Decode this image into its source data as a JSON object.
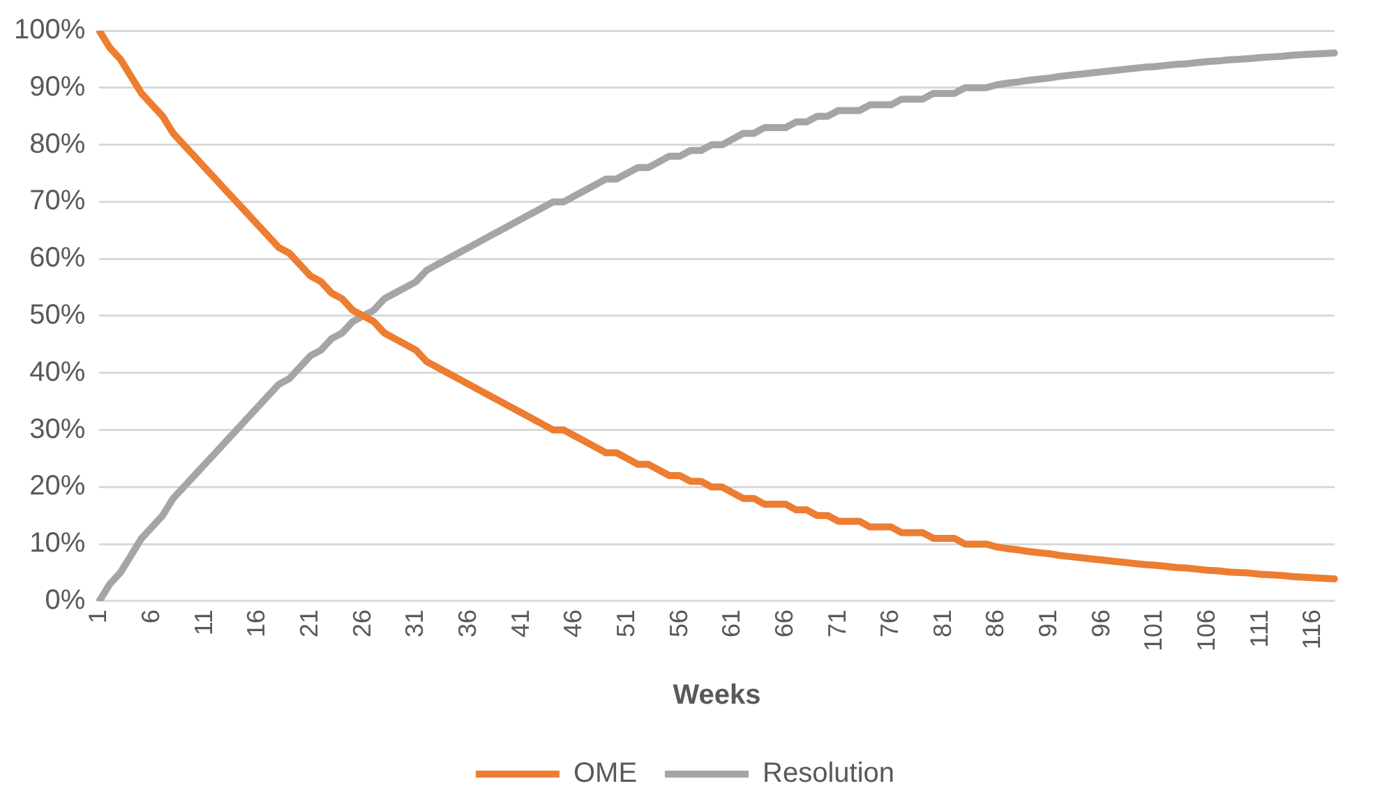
{
  "chart_data": {
    "type": "line",
    "xlabel": "Weeks",
    "categories": [
      "1",
      null,
      null,
      null,
      null,
      "6",
      null,
      null,
      null,
      null,
      "11",
      null,
      null,
      null,
      null,
      "16",
      null,
      null,
      null,
      null,
      "21",
      null,
      null,
      null,
      null,
      "26",
      null,
      null,
      null,
      null,
      "31",
      null,
      null,
      null,
      null,
      "36",
      null,
      null,
      null,
      null,
      "41",
      null,
      null,
      null,
      null,
      "46",
      null,
      null,
      null,
      null,
      "51",
      null,
      null,
      null,
      null,
      "56",
      null,
      null,
      null,
      null,
      "61",
      null,
      null,
      null,
      null,
      "66",
      null,
      null,
      null,
      null,
      "71",
      null,
      null,
      null,
      null,
      "76",
      null,
      null,
      null,
      null,
      "81",
      null,
      null,
      null,
      null,
      "86",
      null,
      null,
      null,
      null,
      "91",
      null,
      null,
      null,
      null,
      "96",
      null,
      null,
      null,
      null,
      "101",
      null,
      null,
      null,
      null,
      "106",
      null,
      null,
      null,
      null,
      "111",
      null,
      null,
      null,
      null,
      "116",
      null,
      null
    ],
    "series": [
      {
        "name": "OME",
        "color": "#ed7d31",
        "values": [
          100,
          97,
          95,
          92,
          89,
          87,
          85,
          82,
          80,
          78,
          76,
          74,
          72,
          70,
          68,
          66,
          64,
          62,
          61,
          59,
          57,
          56,
          54,
          53,
          51,
          50,
          49,
          47,
          46,
          45,
          44,
          42,
          41,
          40,
          39,
          38,
          37,
          36,
          35,
          34,
          33,
          32,
          31,
          30,
          30,
          29,
          28,
          27,
          26,
          26,
          25,
          24,
          24,
          23,
          22,
          22,
          21,
          21,
          20,
          20,
          19,
          18,
          18,
          17,
          17,
          17,
          16,
          16,
          15,
          15,
          14,
          14,
          14,
          13,
          13,
          13,
          12,
          12,
          12,
          11,
          11,
          11,
          10,
          10,
          10,
          9.5,
          9.2,
          9.0,
          8.7,
          8.5,
          8.3,
          8.0,
          7.8,
          7.6,
          7.4,
          7.2,
          7.0,
          6.8,
          6.6,
          6.4,
          6.3,
          6.1,
          5.9,
          5.8,
          5.6,
          5.4,
          5.3,
          5.1,
          5.0,
          4.9,
          4.7,
          4.6,
          4.5,
          4.3,
          4.2,
          4.1,
          4.0,
          3.9
        ]
      },
      {
        "name": "Resolution",
        "color": "#a5a5a5",
        "values": [
          0,
          3,
          5,
          8,
          11,
          13,
          15,
          18,
          20,
          22,
          24,
          26,
          28,
          30,
          32,
          34,
          36,
          38,
          39,
          41,
          43,
          44,
          46,
          47,
          49,
          50,
          51,
          53,
          54,
          55,
          56,
          58,
          59,
          60,
          61,
          62,
          63,
          64,
          65,
          66,
          67,
          68,
          69,
          70,
          70,
          71,
          72,
          73,
          74,
          74,
          75,
          76,
          76,
          77,
          78,
          78,
          79,
          79,
          80,
          80,
          81,
          82,
          82,
          83,
          83,
          83,
          84,
          84,
          85,
          85,
          86,
          86,
          86,
          87,
          87,
          87,
          88,
          88,
          88,
          89,
          89,
          89,
          90,
          90,
          90,
          90.5,
          90.8,
          91.0,
          91.3,
          91.5,
          91.7,
          92.0,
          92.2,
          92.4,
          92.6,
          92.8,
          93.0,
          93.2,
          93.4,
          93.6,
          93.7,
          93.9,
          94.1,
          94.2,
          94.4,
          94.6,
          94.7,
          94.9,
          95.0,
          95.1,
          95.3,
          95.4,
          95.5,
          95.7,
          95.8,
          95.9,
          96.0,
          96.1
        ]
      }
    ],
    "ylim": [
      0,
      100
    ],
    "yticks": [
      {
        "value": 0,
        "label": "0%"
      },
      {
        "value": 10,
        "label": "10%"
      },
      {
        "value": 20,
        "label": "20%"
      },
      {
        "value": 30,
        "label": "30%"
      },
      {
        "value": 40,
        "label": "40%"
      },
      {
        "value": 50,
        "label": "50%"
      },
      {
        "value": 60,
        "label": "60%"
      },
      {
        "value": 70,
        "label": "70%"
      },
      {
        "value": 80,
        "label": "80%"
      },
      {
        "value": 90,
        "label": "90%"
      },
      {
        "value": 100,
        "label": "100%"
      }
    ],
    "grid": "y",
    "legend": "bottom",
    "marker": "none",
    "line_style": "solid"
  }
}
